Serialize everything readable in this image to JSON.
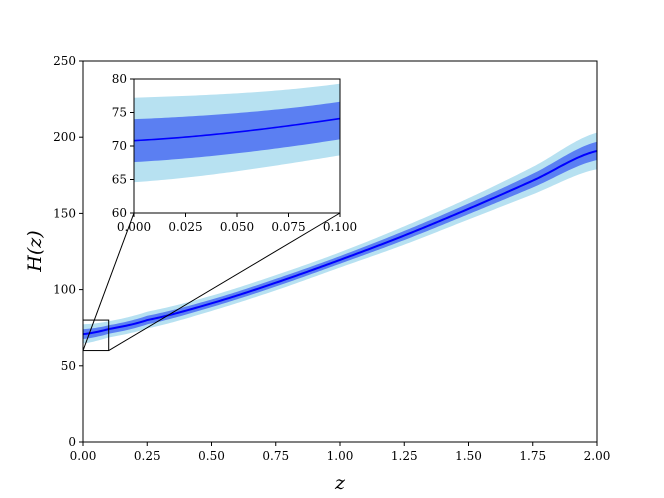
{
  "chart_data": {
    "type": "line",
    "title": "",
    "xlabel": "z",
    "ylabel": "H(z)",
    "xlim": [
      0,
      2
    ],
    "ylim": [
      0,
      250
    ],
    "x_ticks": [
      "0.00",
      "0.25",
      "0.50",
      "0.75",
      "1.00",
      "1.25",
      "1.50",
      "1.75",
      "2.00"
    ],
    "y_ticks": [
      "0",
      "50",
      "100",
      "150",
      "200",
      "250"
    ],
    "grid": false,
    "colors": {
      "mean_line": "#0000ff",
      "band_inner": "#5b7ff2",
      "band_outer": "#b7e1f1"
    },
    "series": [
      {
        "x": [
          0,
          0.1,
          0.25,
          0.5,
          0.75,
          1.0,
          1.25,
          1.5,
          1.75,
          2.0
        ],
        "mean": [
          70.8,
          74.1,
          80.0,
          91.0,
          104.5,
          119.5,
          135.5,
          153.0,
          171.5,
          191.0
        ],
        "inner_lower": [
          67.6,
          71.0,
          77.2,
          88.5,
          102.0,
          117.0,
          132.5,
          149.5,
          167.0,
          185.0
        ],
        "inner_upper": [
          74.0,
          76.6,
          82.8,
          93.5,
          107.0,
          122.0,
          138.5,
          156.5,
          176.0,
          197.0
        ],
        "outer_lower": [
          64.6,
          68.6,
          74.5,
          86.0,
          99.5,
          114.5,
          129.5,
          146.0,
          162.5,
          179.0
        ],
        "outer_upper": [
          77.2,
          79.3,
          85.5,
          96.0,
          109.5,
          124.5,
          141.5,
          160.0,
          180.5,
          203.0
        ]
      }
    ],
    "inset": {
      "xlim": [
        0,
        0.1
      ],
      "ylim": [
        60,
        80
      ],
      "x_ticks": [
        "0.000",
        "0.025",
        "0.050",
        "0.075",
        "0.100"
      ],
      "y_ticks": [
        "60",
        "65",
        "70",
        "75",
        "80"
      ]
    }
  }
}
